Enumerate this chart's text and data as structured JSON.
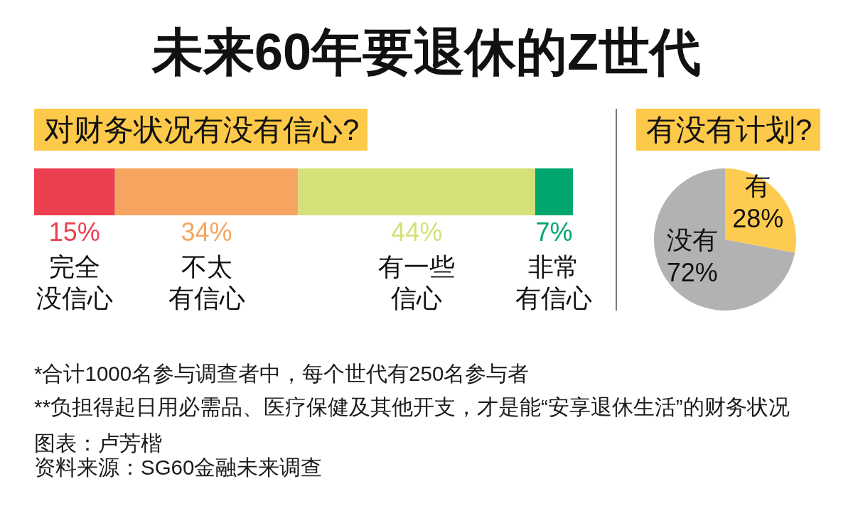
{
  "chart_data": [
    {
      "type": "bar",
      "title": "未来60年要退休的Z世代",
      "subtitle": "对财务状况有没有信心?",
      "orientation": "horizontal",
      "stacked": true,
      "categories": [
        null
      ],
      "series": [
        {
          "name": "完全没信心",
          "color": "#ec3f4f",
          "values": [
            15
          ],
          "value_labels": [
            "15%"
          ]
        },
        {
          "name": "不太有信心",
          "color": "#f5a560",
          "values": [
            34
          ],
          "value_labels": [
            "34%"
          ]
        },
        {
          "name": "有一些信心",
          "color": "#d5e079",
          "values": [
            44
          ],
          "value_labels": [
            "44%"
          ]
        },
        {
          "name": "非常有信心",
          "color": "#00a66d",
          "values": [
            7
          ],
          "value_labels": [
            "7%"
          ]
        }
      ],
      "annotations": [
        "*合计1000名参与调查者中，每个世代有250名参与者",
        "**负担得起日用必需品、医疗保健及其他开支，才是能“安享退休生活”的财务状况",
        "图表：卢芳楷",
        "资料来源：SG60金融未来调查"
      ]
    },
    {
      "type": "pie",
      "title": "有没有计划?",
      "categories": [
        "有",
        "没有"
      ],
      "values": [
        28,
        72
      ],
      "colors": [
        "#fdcb4f",
        "#b2b2b2"
      ],
      "value_labels": [
        "28%",
        "72%"
      ]
    }
  ]
}
